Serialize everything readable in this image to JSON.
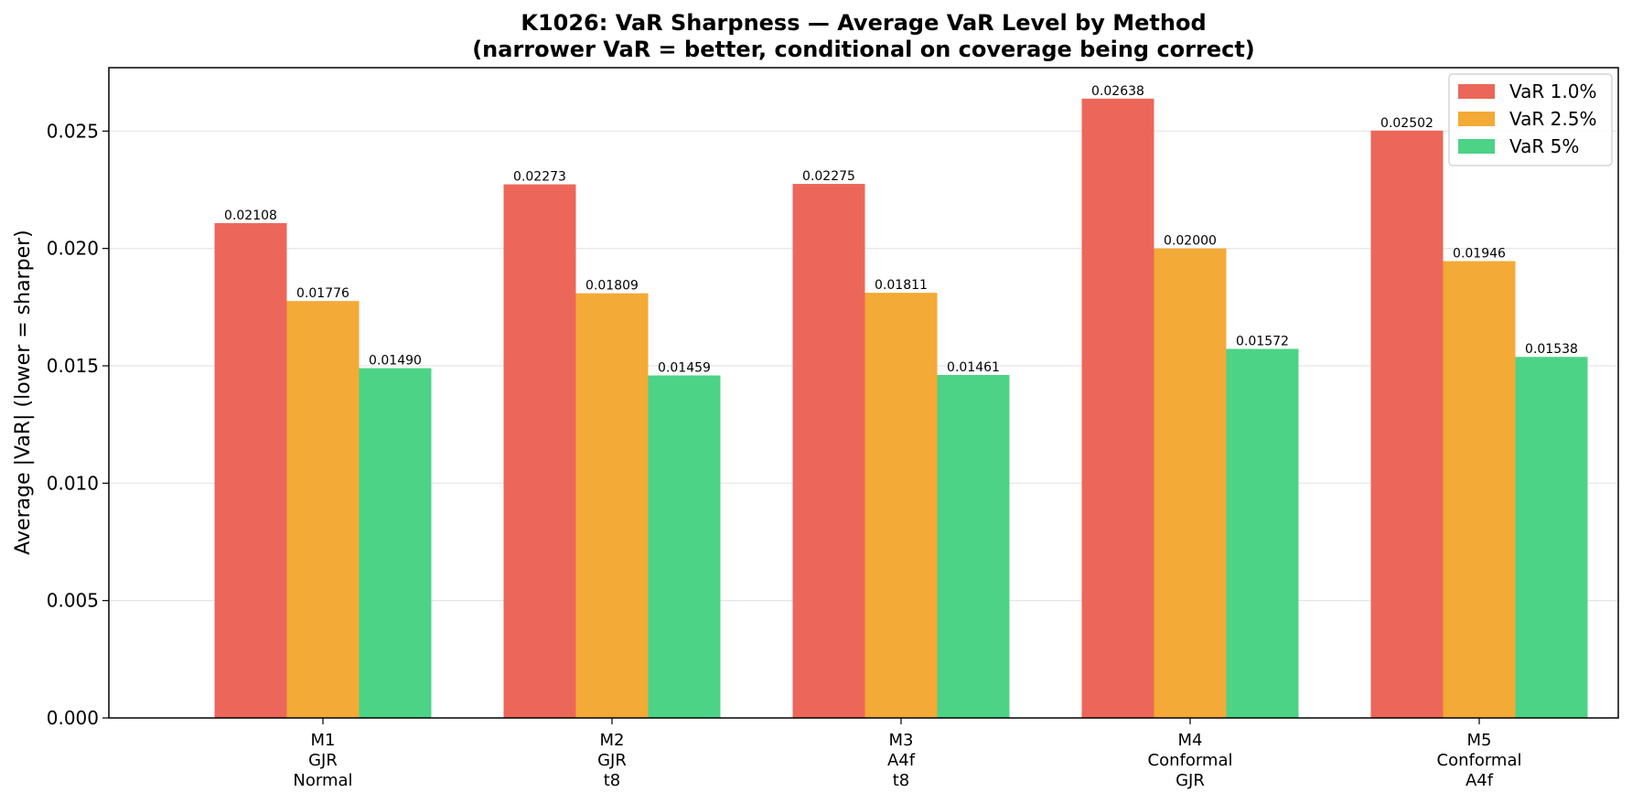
{
  "chart_data": {
    "type": "bar",
    "title": "K1026: VaR Sharpness — Average VaR Level by Method",
    "subtitle": "(narrower VaR = better, conditional on coverage being correct)",
    "xlabel": "",
    "ylabel": "Average |VaR| (lower = sharper)",
    "ylim": [
      0,
      0.0277
    ],
    "yticks": [
      "0.000",
      "0.005",
      "0.010",
      "0.015",
      "0.020",
      "0.025"
    ],
    "ytick_values": [
      0,
      0.005,
      0.01,
      0.015,
      0.02,
      0.025
    ],
    "grid": "horizontal",
    "legend_position": "top-right",
    "categories": [
      [
        "M1",
        "GJR",
        "Normal"
      ],
      [
        "M2",
        "GJR",
        "t8"
      ],
      [
        "M3",
        "A4f",
        "t8"
      ],
      [
        "M4",
        "Conformal",
        "GJR"
      ],
      [
        "M5",
        "Conformal",
        "A4f"
      ]
    ],
    "series": [
      {
        "name": "VaR 1.0%",
        "color": "#ec6759",
        "values": [
          0.02108,
          0.02273,
          0.02275,
          0.02638,
          0.02502
        ],
        "labels": [
          "0.02108",
          "0.02273",
          "0.02275",
          "0.02638",
          "0.02502"
        ]
      },
      {
        "name": "VaR 2.5%",
        "color": "#f3aa36",
        "values": [
          0.01776,
          0.01809,
          0.01811,
          0.02,
          0.01946
        ],
        "labels": [
          "0.01776",
          "0.01809",
          "0.01811",
          "0.02000",
          "0.01946"
        ]
      },
      {
        "name": "VaR 5%",
        "color": "#4cd386",
        "values": [
          0.0149,
          0.01459,
          0.01461,
          0.01572,
          0.01538
        ],
        "labels": [
          "0.01490",
          "0.01459",
          "0.01461",
          "0.01572",
          "0.01538"
        ]
      }
    ]
  }
}
